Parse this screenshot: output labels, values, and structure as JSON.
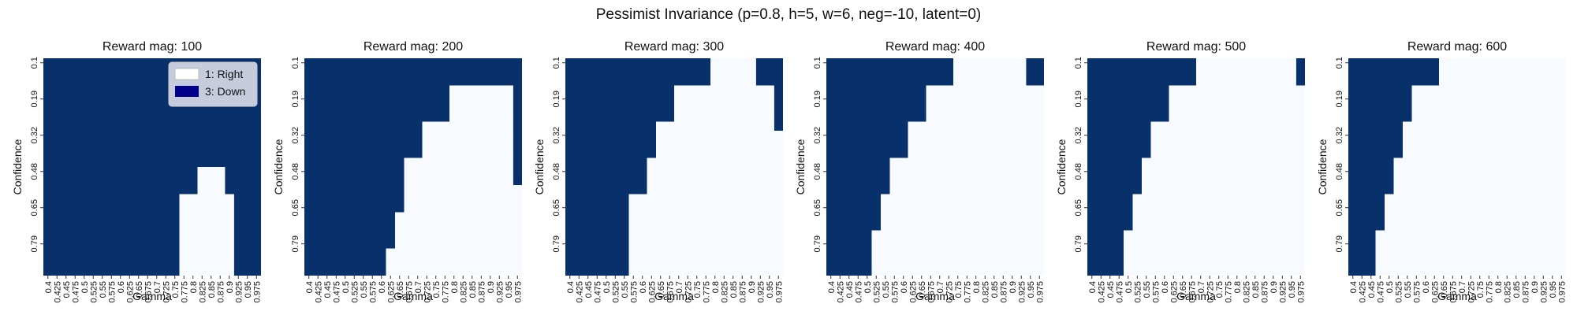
{
  "figure": {
    "title": "Pessimist Invariance (p=0.8, h=5, w=6, neg=-10, latent=0)"
  },
  "chart_data": {
    "type": "heatmap",
    "xlabel": "Gamma",
    "ylabel": "Confidence",
    "x_ticks": [
      "0.4",
      "0.425",
      "0.45",
      "0.475",
      "0.5",
      "0.525",
      "0.55",
      "0.575",
      "0.6",
      "0.625",
      "0.65",
      "0.675",
      "0.7",
      "0.725",
      "0.75",
      "0.775",
      "0.8",
      "0.825",
      "0.85",
      "0.875",
      "0.9",
      "0.925",
      "0.95",
      "0.975"
    ],
    "y_ticks": [
      "0.1",
      "0.19",
      "0.32",
      "0.48",
      "0.65",
      "0.79"
    ],
    "rows": 24,
    "cols": 24,
    "row_tick_indices": [
      0,
      4,
      8,
      12,
      16,
      20
    ],
    "legend": {
      "placement": "top-right",
      "entries": [
        {
          "label": "1: Right",
          "value": 1,
          "color": "#ffffff"
        },
        {
          "label": "3: Down",
          "value": 3,
          "color": "#00008b"
        }
      ]
    },
    "cell_colors": {
      "1": "#f7fbff",
      "3": "#08306b"
    },
    "value_encoding": "Each panel: per Confidence row, list of [start_col, end_col_exclusive] Gamma index ranges whose action is 1 (Right); remaining cells are 3 (Down).",
    "panels": [
      {
        "title": "Reward mag: 100",
        "show_legend": true,
        "right_runs": [
          [],
          [],
          [],
          [],
          [],
          [],
          [],
          [],
          [],
          [],
          [],
          [],
          [
            [
              17,
              20
            ]
          ],
          [
            [
              17,
              20
            ]
          ],
          [
            [
              17,
              20
            ]
          ],
          [
            [
              15,
              21
            ]
          ],
          [
            [
              15,
              21
            ]
          ],
          [
            [
              15,
              21
            ]
          ],
          [
            [
              15,
              21
            ]
          ],
          [
            [
              15,
              21
            ]
          ],
          [
            [
              15,
              21
            ]
          ],
          [
            [
              15,
              21
            ]
          ],
          [
            [
              15,
              21
            ]
          ],
          [
            [
              15,
              21
            ]
          ]
        ]
      },
      {
        "title": "Reward mag: 200",
        "show_legend": false,
        "right_runs": [
          [],
          [],
          [],
          [
            [
              16,
              23
            ]
          ],
          [
            [
              16,
              23
            ]
          ],
          [
            [
              16,
              23
            ]
          ],
          [
            [
              16,
              23
            ]
          ],
          [
            [
              13,
              23
            ]
          ],
          [
            [
              13,
              23
            ]
          ],
          [
            [
              13,
              23
            ]
          ],
          [
            [
              13,
              23
            ]
          ],
          [
            [
              11,
              23
            ]
          ],
          [
            [
              11,
              23
            ]
          ],
          [
            [
              11,
              23
            ]
          ],
          [
            [
              11,
              24
            ]
          ],
          [
            [
              11,
              24
            ]
          ],
          [
            [
              11,
              24
            ]
          ],
          [
            [
              10,
              24
            ]
          ],
          [
            [
              10,
              24
            ]
          ],
          [
            [
              10,
              24
            ]
          ],
          [
            [
              10,
              24
            ]
          ],
          [
            [
              9,
              24
            ]
          ],
          [
            [
              9,
              24
            ]
          ],
          [
            [
              9,
              24
            ]
          ]
        ]
      },
      {
        "title": "Reward mag: 300",
        "show_legend": false,
        "right_runs": [
          [
            [
              16,
              21
            ]
          ],
          [
            [
              16,
              21
            ]
          ],
          [
            [
              16,
              21
            ]
          ],
          [
            [
              12,
              23
            ]
          ],
          [
            [
              12,
              23
            ]
          ],
          [
            [
              12,
              23
            ]
          ],
          [
            [
              12,
              23
            ]
          ],
          [
            [
              10,
              23
            ]
          ],
          [
            [
              10,
              24
            ]
          ],
          [
            [
              10,
              24
            ]
          ],
          [
            [
              10,
              24
            ]
          ],
          [
            [
              9,
              24
            ]
          ],
          [
            [
              9,
              24
            ]
          ],
          [
            [
              9,
              24
            ]
          ],
          [
            [
              9,
              24
            ]
          ],
          [
            [
              7,
              24
            ]
          ],
          [
            [
              7,
              24
            ]
          ],
          [
            [
              7,
              24
            ]
          ],
          [
            [
              7,
              24
            ]
          ],
          [
            [
              7,
              24
            ]
          ],
          [
            [
              7,
              24
            ]
          ],
          [
            [
              7,
              24
            ]
          ],
          [
            [
              7,
              24
            ]
          ],
          [
            [
              7,
              24
            ]
          ]
        ]
      },
      {
        "title": "Reward mag: 400",
        "show_legend": false,
        "right_runs": [
          [
            [
              14,
              22
            ]
          ],
          [
            [
              14,
              22
            ]
          ],
          [
            [
              14,
              22
            ]
          ],
          [
            [
              11,
              24
            ]
          ],
          [
            [
              11,
              24
            ]
          ],
          [
            [
              11,
              24
            ]
          ],
          [
            [
              11,
              24
            ]
          ],
          [
            [
              9,
              24
            ]
          ],
          [
            [
              9,
              24
            ]
          ],
          [
            [
              9,
              24
            ]
          ],
          [
            [
              9,
              24
            ]
          ],
          [
            [
              7,
              24
            ]
          ],
          [
            [
              7,
              24
            ]
          ],
          [
            [
              7,
              24
            ]
          ],
          [
            [
              7,
              24
            ]
          ],
          [
            [
              6,
              24
            ]
          ],
          [
            [
              6,
              24
            ]
          ],
          [
            [
              6,
              24
            ]
          ],
          [
            [
              6,
              24
            ]
          ],
          [
            [
              5,
              24
            ]
          ],
          [
            [
              5,
              24
            ]
          ],
          [
            [
              5,
              24
            ]
          ],
          [
            [
              5,
              24
            ]
          ],
          [
            [
              5,
              24
            ]
          ]
        ]
      },
      {
        "title": "Reward mag: 500",
        "show_legend": false,
        "right_runs": [
          [
            [
              12,
              23
            ]
          ],
          [
            [
              12,
              23
            ]
          ],
          [
            [
              12,
              23
            ]
          ],
          [
            [
              9,
              24
            ]
          ],
          [
            [
              9,
              24
            ]
          ],
          [
            [
              9,
              24
            ]
          ],
          [
            [
              9,
              24
            ]
          ],
          [
            [
              7,
              24
            ]
          ],
          [
            [
              7,
              24
            ]
          ],
          [
            [
              7,
              24
            ]
          ],
          [
            [
              7,
              24
            ]
          ],
          [
            [
              6,
              24
            ]
          ],
          [
            [
              6,
              24
            ]
          ],
          [
            [
              6,
              24
            ]
          ],
          [
            [
              6,
              24
            ]
          ],
          [
            [
              5,
              24
            ]
          ],
          [
            [
              5,
              24
            ]
          ],
          [
            [
              5,
              24
            ]
          ],
          [
            [
              5,
              24
            ]
          ],
          [
            [
              4,
              24
            ]
          ],
          [
            [
              4,
              24
            ]
          ],
          [
            [
              4,
              24
            ]
          ],
          [
            [
              4,
              24
            ]
          ],
          [
            [
              4,
              24
            ]
          ]
        ]
      },
      {
        "title": "Reward mag: 600",
        "show_legend": false,
        "right_runs": [
          [
            [
              10,
              24
            ]
          ],
          [
            [
              10,
              24
            ]
          ],
          [
            [
              10,
              24
            ]
          ],
          [
            [
              7,
              24
            ]
          ],
          [
            [
              7,
              24
            ]
          ],
          [
            [
              7,
              24
            ]
          ],
          [
            [
              7,
              24
            ]
          ],
          [
            [
              6,
              24
            ]
          ],
          [
            [
              6,
              24
            ]
          ],
          [
            [
              6,
              24
            ]
          ],
          [
            [
              6,
              24
            ]
          ],
          [
            [
              5,
              24
            ]
          ],
          [
            [
              5,
              24
            ]
          ],
          [
            [
              5,
              24
            ]
          ],
          [
            [
              5,
              24
            ]
          ],
          [
            [
              4,
              24
            ]
          ],
          [
            [
              4,
              24
            ]
          ],
          [
            [
              4,
              24
            ]
          ],
          [
            [
              4,
              24
            ]
          ],
          [
            [
              3,
              24
            ]
          ],
          [
            [
              3,
              24
            ]
          ],
          [
            [
              3,
              24
            ]
          ],
          [
            [
              3,
              24
            ]
          ],
          [
            [
              3,
              24
            ]
          ]
        ]
      }
    ]
  }
}
